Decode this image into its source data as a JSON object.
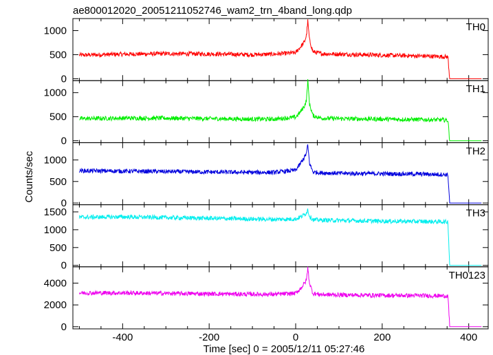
{
  "chart_data": {
    "type": "line",
    "title": "ae800012020_20051211052746_wam2_trn_4band_long.qdp",
    "xlabel": "Time [sec] 0 = 2005/12/11 05:27:46",
    "ylabel": "Counts/sec",
    "xlim": [
      -515,
      445
    ],
    "x_ticks": [
      "-400",
      "-200",
      "0",
      "200",
      "400"
    ],
    "x_tick_values": [
      -400,
      -200,
      0,
      200,
      400
    ],
    "grid": false,
    "panels": [
      {
        "name": "TH0",
        "color": "#ff0000",
        "ylim": [
          -40,
          1250
        ],
        "y_ticks": [
          "0",
          "500",
          "1000"
        ],
        "y_tick_values": [
          0,
          500,
          1000
        ],
        "x": [
          -500,
          -400,
          -300,
          -200,
          -100,
          -50,
          0,
          10,
          20,
          25,
          28,
          32,
          40,
          60,
          100,
          200,
          300,
          350,
          352,
          356,
          430
        ],
        "values": [
          490,
          510,
          520,
          515,
          500,
          510,
          540,
          650,
          760,
          900,
          1200,
          800,
          560,
          520,
          510,
          490,
          470,
          455,
          440,
          0,
          0
        ]
      },
      {
        "name": "TH1",
        "color": "#00ee00",
        "ylim": [
          -40,
          1250
        ],
        "y_ticks": [
          "0",
          "500",
          "1000"
        ],
        "y_tick_values": [
          0,
          500,
          1000
        ],
        "x": [
          -500,
          -400,
          -300,
          -200,
          -100,
          -50,
          0,
          10,
          20,
          25,
          28,
          32,
          40,
          60,
          100,
          200,
          300,
          350,
          352,
          356,
          430
        ],
        "values": [
          460,
          470,
          470,
          460,
          450,
          450,
          490,
          590,
          720,
          840,
          1260,
          760,
          520,
          470,
          460,
          450,
          440,
          430,
          420,
          0,
          0
        ]
      },
      {
        "name": "TH2",
        "color": "#0000dd",
        "ylim": [
          -40,
          1400
        ],
        "y_ticks": [
          "0",
          "500",
          "1000"
        ],
        "y_tick_values": [
          0,
          500,
          1000
        ],
        "x": [
          -500,
          -400,
          -300,
          -200,
          -100,
          -50,
          0,
          10,
          20,
          25,
          28,
          32,
          40,
          60,
          100,
          200,
          300,
          350,
          352,
          356,
          430
        ],
        "values": [
          750,
          740,
          730,
          720,
          710,
          710,
          760,
          900,
          1060,
          1150,
          1350,
          920,
          720,
          700,
          690,
          680,
          670,
          660,
          650,
          0,
          0
        ]
      },
      {
        "name": "TH3",
        "color": "#00eeee",
        "ylim": [
          -40,
          1700
        ],
        "y_ticks": [
          "0",
          "500",
          "1000",
          "1500"
        ],
        "y_tick_values": [
          0,
          500,
          1000,
          1500
        ],
        "x": [
          -500,
          -400,
          -300,
          -200,
          -100,
          -50,
          0,
          10,
          20,
          25,
          28,
          32,
          40,
          60,
          100,
          200,
          300,
          350,
          352,
          356,
          430
        ],
        "values": [
          1350,
          1360,
          1340,
          1320,
          1300,
          1290,
          1300,
          1350,
          1420,
          1480,
          1560,
          1380,
          1280,
          1270,
          1260,
          1240,
          1230,
          1220,
          1210,
          0,
          0
        ]
      },
      {
        "name": "TH0123",
        "color": "#ee00ee",
        "ylim": [
          -200,
          5500
        ],
        "y_ticks": [
          "0",
          "2000",
          "4000"
        ],
        "y_tick_values": [
          0,
          2000,
          4000
        ],
        "x": [
          -500,
          -400,
          -300,
          -200,
          -100,
          -50,
          0,
          10,
          20,
          25,
          28,
          32,
          40,
          60,
          100,
          200,
          300,
          350,
          352,
          356,
          430
        ],
        "values": [
          3100,
          3100,
          3060,
          3020,
          2980,
          2970,
          3060,
          3450,
          3950,
          4300,
          5400,
          4000,
          3050,
          2950,
          2920,
          2880,
          2850,
          2830,
          2800,
          0,
          0
        ]
      }
    ]
  }
}
